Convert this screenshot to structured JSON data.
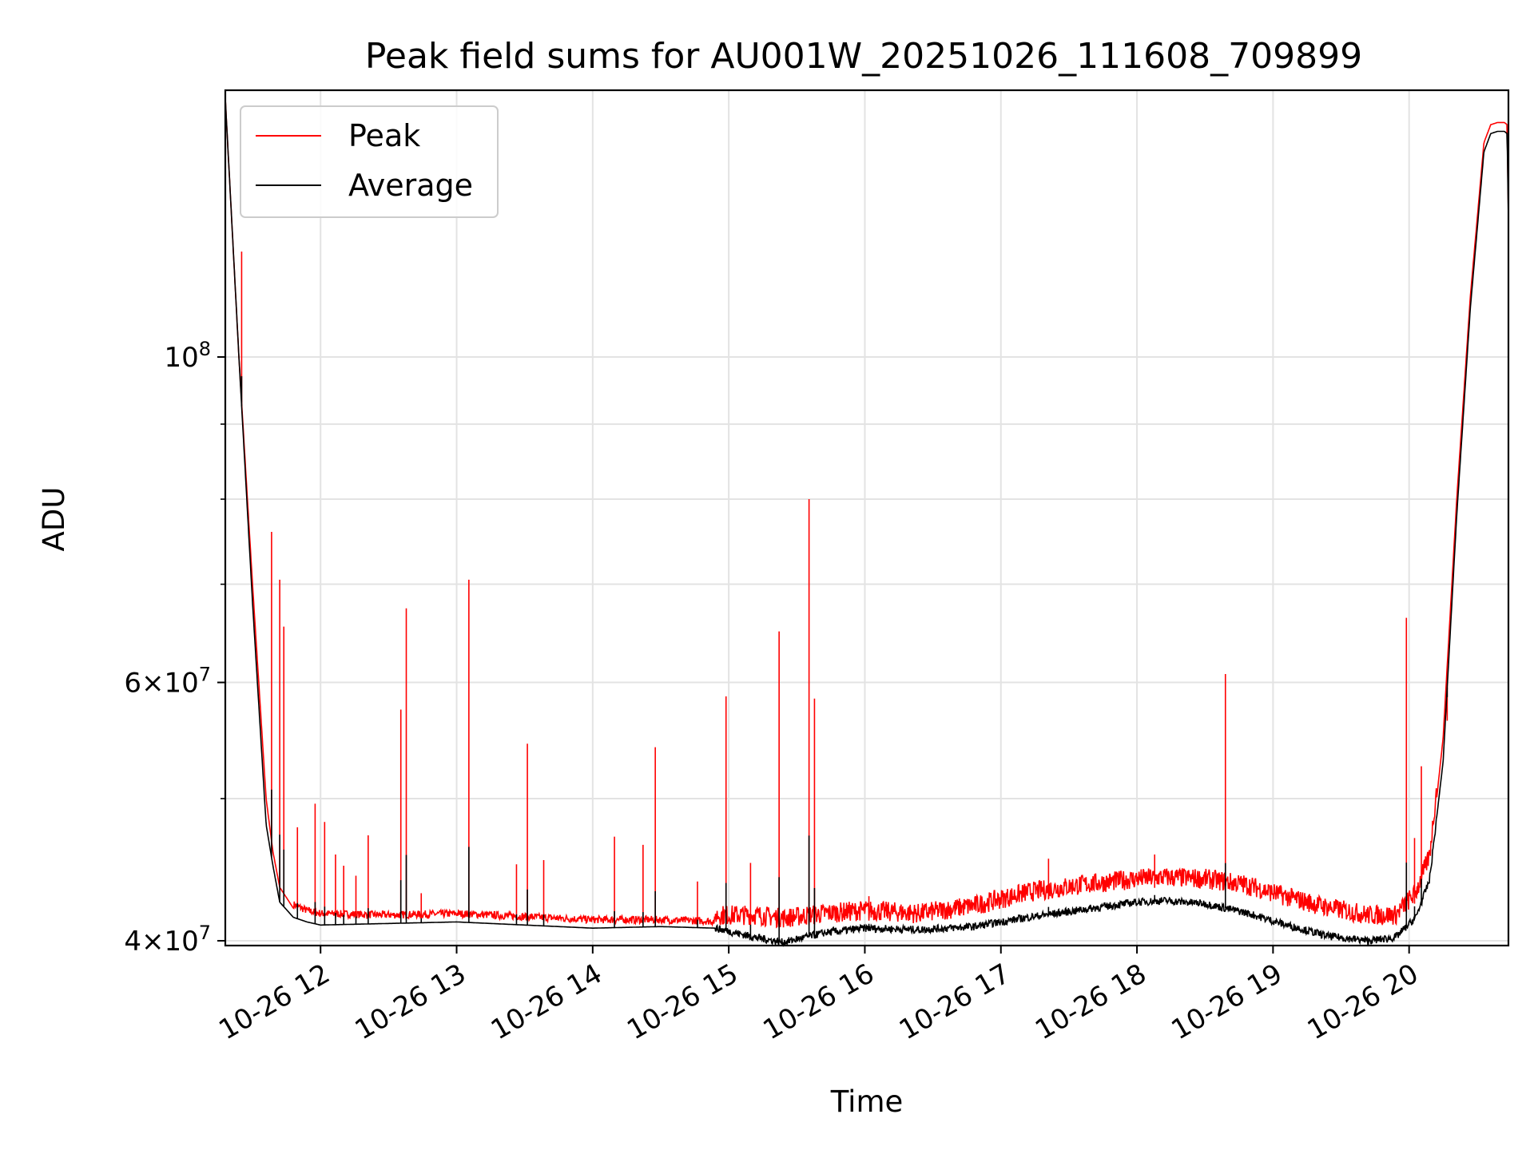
{
  "chart_data": {
    "type": "line",
    "title": "Peak field sums for AU001W_20251026_111608_709899",
    "xlabel": "Time",
    "ylabel": "ADU",
    "scale_y": "log",
    "xlim": [
      11.3,
      20.73
    ],
    "ylim": [
      39700000,
      152000000
    ],
    "x_ticks": [
      {
        "value": 12,
        "label": "10-26 12"
      },
      {
        "value": 13,
        "label": "10-26 13"
      },
      {
        "value": 14,
        "label": "10-26 14"
      },
      {
        "value": 15,
        "label": "10-26 15"
      },
      {
        "value": 16,
        "label": "10-26 16"
      },
      {
        "value": 17,
        "label": "10-26 17"
      },
      {
        "value": 18,
        "label": "10-26 18"
      },
      {
        "value": 19,
        "label": "10-26 19"
      },
      {
        "value": 20,
        "label": "10-26 20"
      }
    ],
    "y_major_ticks": [
      {
        "value": 40000000,
        "base": "4",
        "mult": "×",
        "pow_base": "10",
        "exp": "7"
      },
      {
        "value": 60000000,
        "base": "6",
        "mult": "×",
        "pow_base": "10",
        "exp": "7"
      },
      {
        "value": 100000000,
        "base": "",
        "mult": "",
        "pow_base": "10",
        "exp": "8"
      }
    ],
    "y_minor_ticks": [
      50000000,
      70000000,
      80000000,
      90000000
    ],
    "grid": true,
    "legend": {
      "position": "upper-left",
      "entries": [
        "Peak",
        "Average"
      ]
    },
    "series": [
      {
        "name": "Peak",
        "color": "#ff0000",
        "x": [
          11.3,
          11.4,
          11.5,
          11.6,
          11.65,
          11.7,
          11.8,
          11.9,
          12.0,
          12.5,
          13.0,
          13.5,
          14.0,
          14.5,
          14.9,
          15.2,
          15.4,
          15.7,
          16.0,
          16.4,
          16.8,
          17.2,
          17.6,
          18.0,
          18.2,
          18.5,
          18.8,
          19.1,
          19.4,
          19.7,
          19.9,
          20.05,
          20.15,
          20.25,
          20.35,
          20.45,
          20.55,
          20.6,
          20.65,
          20.7,
          20.72,
          20.73
        ],
        "values": [
          150000000,
          100000000,
          70000000,
          50000000,
          46000000,
          43500000,
          42100000,
          41700000,
          41500000,
          41400000,
          41500000,
          41300000,
          41100000,
          41100000,
          41000000,
          41000000,
          40800000,
          41100000,
          41300000,
          41100000,
          41600000,
          42500000,
          43000000,
          43400000,
          43500000,
          43400000,
          43000000,
          42200000,
          41500000,
          41000000,
          41000000,
          42500000,
          45000000,
          55000000,
          80000000,
          110000000,
          140000000,
          144000000,
          144500000,
          144500000,
          144000000,
          125000000
        ]
      },
      {
        "name": "Average",
        "color": "#000000",
        "x": [
          11.3,
          11.4,
          11.5,
          11.6,
          11.65,
          11.7,
          11.8,
          11.9,
          12.0,
          12.5,
          13.0,
          13.5,
          14.0,
          14.5,
          14.9,
          15.2,
          15.4,
          15.7,
          16.0,
          16.4,
          16.8,
          17.2,
          17.6,
          18.0,
          18.2,
          18.5,
          18.8,
          19.1,
          19.4,
          19.7,
          19.9,
          20.05,
          20.15,
          20.25,
          20.35,
          20.45,
          20.55,
          20.6,
          20.65,
          20.7,
          20.72,
          20.73
        ],
        "values": [
          150000000,
          100000000,
          68000000,
          48000000,
          45000000,
          42500000,
          41500000,
          41200000,
          41000000,
          41100000,
          41200000,
          41000000,
          40800000,
          40900000,
          40800000,
          40200000,
          39900000,
          40500000,
          40800000,
          40700000,
          40900000,
          41500000,
          42000000,
          42500000,
          42600000,
          42400000,
          41800000,
          41000000,
          40300000,
          40000000,
          40200000,
          41500000,
          44000000,
          53000000,
          78000000,
          108000000,
          138000000,
          142000000,
          142500000,
          142500000,
          142000000,
          124000000
        ]
      }
    ],
    "peak_spikes": [
      {
        "x": 11.42,
        "y": 118000000
      },
      {
        "x": 11.64,
        "y": 76000000
      },
      {
        "x": 11.7,
        "y": 70500000
      },
      {
        "x": 11.73,
        "y": 65500000
      },
      {
        "x": 11.83,
        "y": 47800000
      },
      {
        "x": 11.96,
        "y": 49600000
      },
      {
        "x": 12.03,
        "y": 48200000
      },
      {
        "x": 12.11,
        "y": 45800000
      },
      {
        "x": 12.17,
        "y": 45000000
      },
      {
        "x": 12.26,
        "y": 44300000
      },
      {
        "x": 12.35,
        "y": 47200000
      },
      {
        "x": 12.59,
        "y": 57500000
      },
      {
        "x": 12.63,
        "y": 67400000
      },
      {
        "x": 12.74,
        "y": 43100000
      },
      {
        "x": 13.09,
        "y": 70500000
      },
      {
        "x": 13.44,
        "y": 45100000
      },
      {
        "x": 13.52,
        "y": 54500000
      },
      {
        "x": 13.64,
        "y": 45400000
      },
      {
        "x": 14.16,
        "y": 47100000
      },
      {
        "x": 14.37,
        "y": 46500000
      },
      {
        "x": 14.46,
        "y": 54200000
      },
      {
        "x": 14.77,
        "y": 43900000
      },
      {
        "x": 14.98,
        "y": 58700000
      },
      {
        "x": 15.16,
        "y": 45200000
      },
      {
        "x": 15.37,
        "y": 65000000
      },
      {
        "x": 15.59,
        "y": 80000000
      },
      {
        "x": 15.63,
        "y": 58500000
      },
      {
        "x": 16.03,
        "y": 42900000
      },
      {
        "x": 17.35,
        "y": 45500000
      },
      {
        "x": 18.13,
        "y": 45800000
      },
      {
        "x": 18.65,
        "y": 60800000
      },
      {
        "x": 19.98,
        "y": 66400000
      },
      {
        "x": 20.04,
        "y": 47000000
      },
      {
        "x": 20.09,
        "y": 52600000
      },
      {
        "x": 20.28,
        "y": 56500000
      }
    ]
  }
}
